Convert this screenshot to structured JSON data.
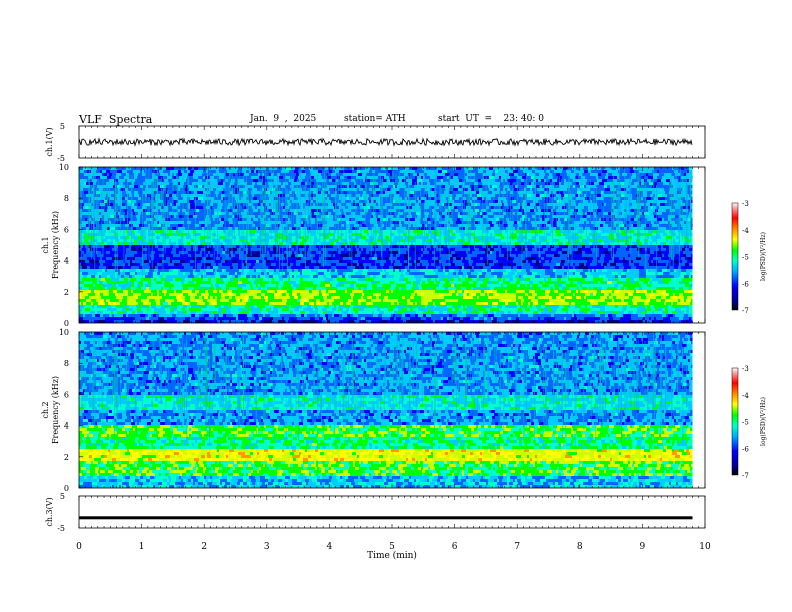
{
  "header": {
    "title": "VLF  Spectra",
    "date": "Jan.  9  ,  2025",
    "station": "station= ATH",
    "start_ut": "start  UT  =    23: 40: 0"
  },
  "chart_data": [
    {
      "type": "line",
      "panel": "ch1-waveform",
      "ylabel": "ch.1(V)",
      "ylim": [
        -5,
        5
      ],
      "y_ticks": [
        "5",
        "-5"
      ],
      "xlim": [
        0,
        10
      ],
      "data_extent_min": [
        0,
        9.8
      ],
      "series": [
        {
          "values_approx_level": 0.0,
          "amplitude_approx": 1.0
        }
      ]
    },
    {
      "type": "heatmap",
      "panel": "ch1-spectrogram",
      "ylabel": "ch.1\nFrequency  (kHz)",
      "ylabel_lines": [
        "ch.1",
        "Frequency  (kHz)"
      ],
      "ylim": [
        0,
        10
      ],
      "y_ticks": [
        "0",
        "2",
        "4",
        "6",
        "8",
        "10"
      ],
      "xlim": [
        0,
        10
      ],
      "data_extent_min": [
        0,
        9.8
      ],
      "colorbar": {
        "label": "log(PSD)(V²/Hz)",
        "range": [
          -7,
          -3
        ],
        "ticks": [
          "-3",
          "-4",
          "-5",
          "-6",
          "-7"
        ]
      }
    },
    {
      "type": "heatmap",
      "panel": "ch2-spectrogram",
      "ylabel": "ch.2\nFrequency  (kHz)",
      "ylabel_lines": [
        "ch.2",
        "Frequency  (kHz)"
      ],
      "ylim": [
        0,
        10
      ],
      "y_ticks": [
        "0",
        "2",
        "4",
        "6",
        "8",
        "10"
      ],
      "xlim": [
        0,
        10
      ],
      "data_extent_min": [
        0,
        9.8
      ],
      "colorbar": {
        "label": "log(PSD)(V²/Hz)",
        "range": [
          -7,
          -3
        ],
        "ticks": [
          "-3",
          "-4",
          "-5",
          "-6",
          "-7"
        ]
      }
    },
    {
      "type": "line",
      "panel": "ch3-waveform",
      "ylabel": "ch.3(V)",
      "ylim": [
        -5,
        5
      ],
      "y_ticks": [
        "5",
        "-5"
      ],
      "xlim": [
        0,
        10
      ],
      "data_extent_min": [
        0,
        9.8
      ],
      "series": [
        {
          "values_approx_level": -1.8
        }
      ]
    }
  ],
  "x_axis": {
    "label": "Time  (min)",
    "ticks": [
      "0",
      "1",
      "2",
      "3",
      "4",
      "5",
      "6",
      "7",
      "8",
      "9",
      "10"
    ]
  },
  "colors": {
    "colormap": [
      "#000000",
      "#00008b",
      "#0000ff",
      "#0066ff",
      "#00ccff",
      "#00ffcc",
      "#00ff00",
      "#ccff00",
      "#ffff00",
      "#ff9900",
      "#ff0000",
      "#ff9999",
      "#ffffff"
    ],
    "axis": "#000000",
    "trace": "#000000"
  }
}
